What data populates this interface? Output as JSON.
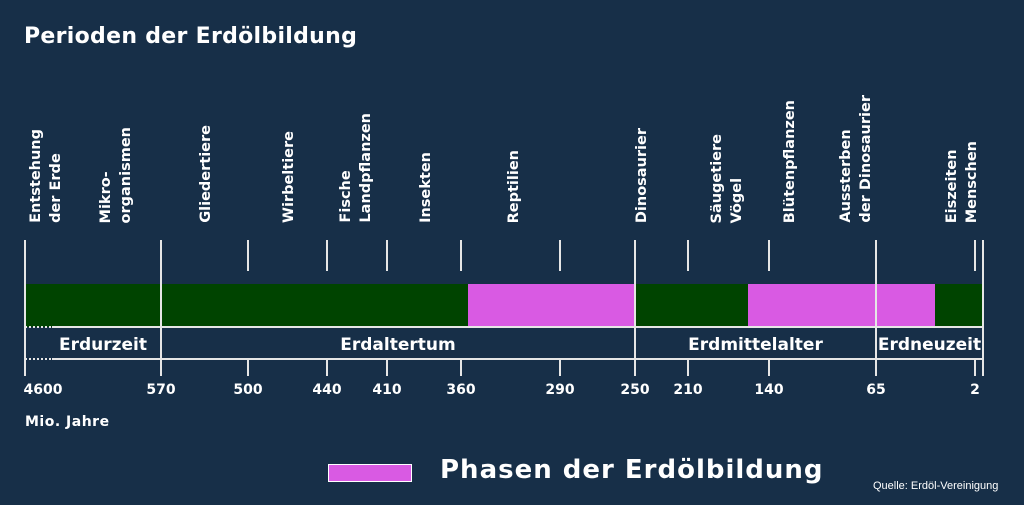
{
  "title": "Perioden der Erdölbildung",
  "events": [
    {
      "label": "Entstehung\nder Erde",
      "x": 46
    },
    {
      "label": "Mikro-\norganismen",
      "x": 116
    },
    {
      "label": "Gliedertiere",
      "x": 206
    },
    {
      "label": "Wirbeltiere",
      "x": 289
    },
    {
      "label": "Fische\nLandpflanzen",
      "x": 356
    },
    {
      "label": "Insekten",
      "x": 426
    },
    {
      "label": "Reptilien",
      "x": 514
    },
    {
      "label": "Dinosaurier",
      "x": 642
    },
    {
      "label": "Säugetiere\nVögel",
      "x": 727
    },
    {
      "label": "Blütenpflanzen",
      "x": 790
    },
    {
      "label": "Aussterben\nder Dinosaurier",
      "x": 856
    },
    {
      "label": "Eiszeiten\nMenschen",
      "x": 962
    }
  ],
  "eras": [
    "Erdurzeit",
    "Erdaltertum",
    "Erdmittelalter",
    "Erdneuzeit"
  ],
  "ticks": [
    "4600",
    "570",
    "500",
    "440",
    "410",
    "360",
    "290",
    "250",
    "210",
    "140",
    "65",
    "2"
  ],
  "unit": "Mio. Jahre",
  "segments": [
    {
      "from": "4600",
      "to": "360",
      "type": "normal"
    },
    {
      "from": "360",
      "to": "250",
      "type": "oil"
    },
    {
      "from": "250",
      "to": "~170",
      "type": "normal"
    },
    {
      "from": "~170",
      "to": "~25",
      "type": "oil"
    },
    {
      "from": "~25",
      "to": "0",
      "type": "normal"
    }
  ],
  "legend": {
    "label": "Phasen der Erdölbildung"
  },
  "source": "Quelle: Erdöl-Vereinigung",
  "colors": {
    "background": "#172f48",
    "normal": "#004400",
    "oil": "#d95ae3",
    "lines": "#e6e6e6"
  }
}
